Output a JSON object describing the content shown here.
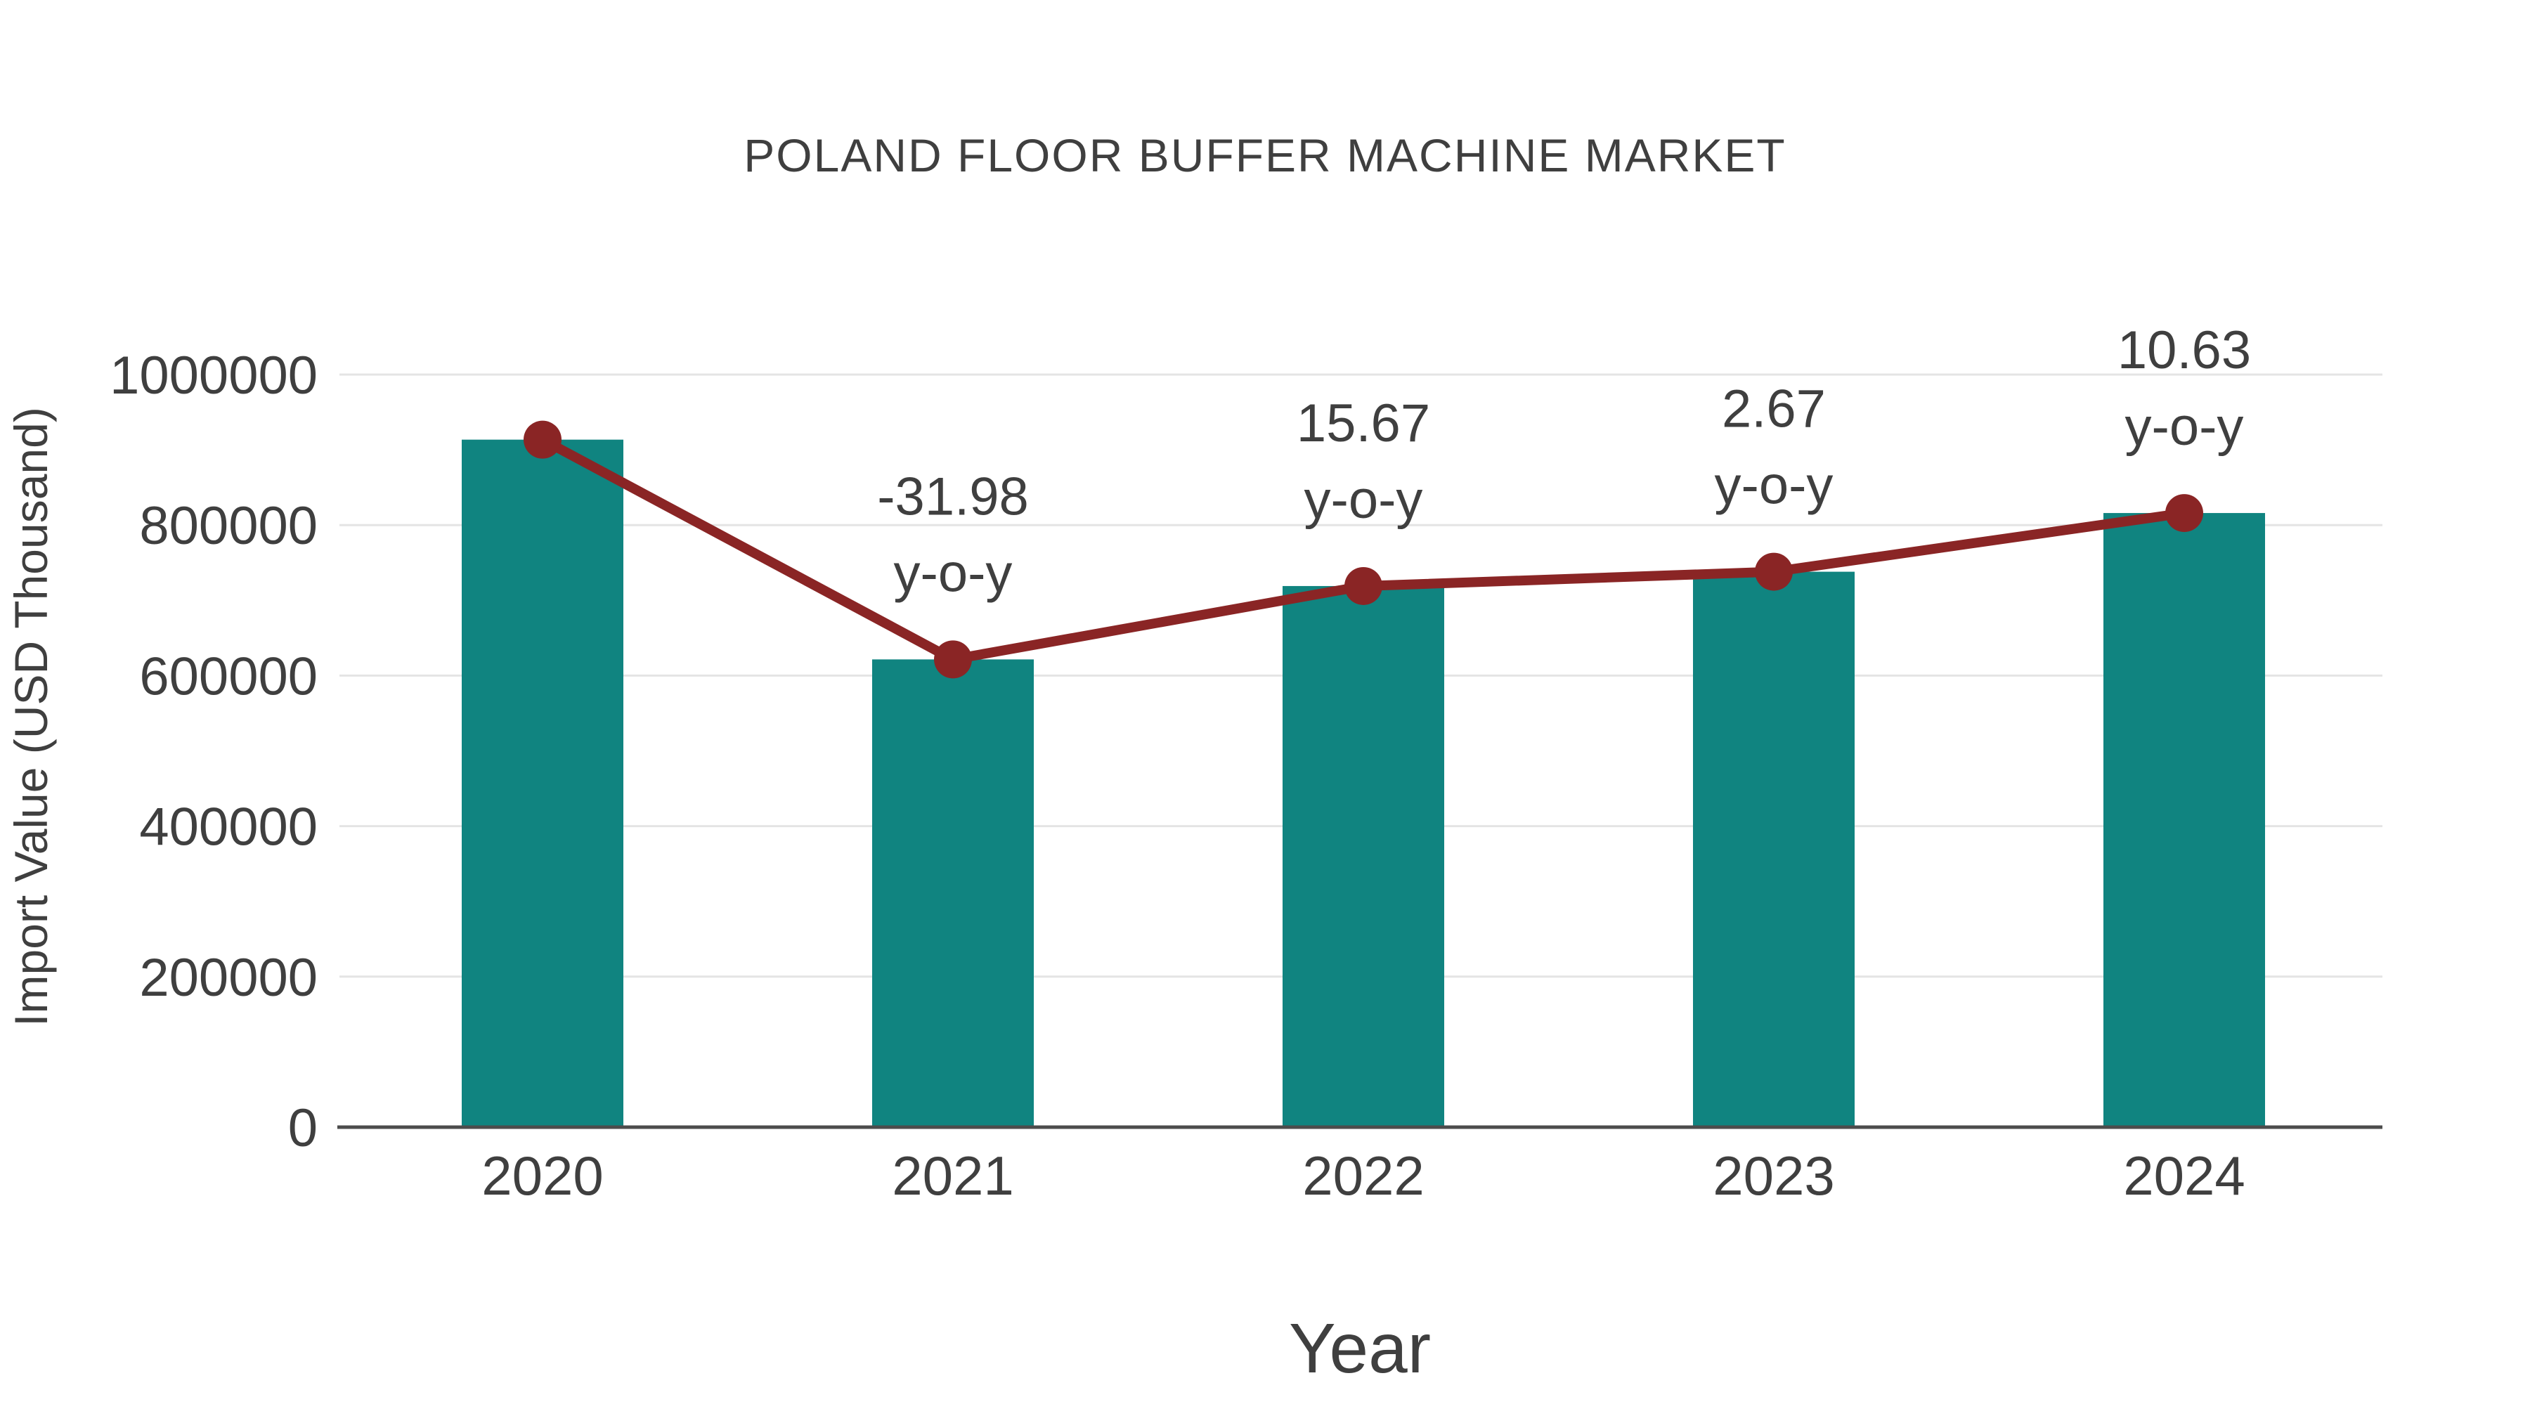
{
  "figure": {
    "title": "POLAND FLOOR BUFFER MACHINE MARKET"
  },
  "chart_data": {
    "type": "bar",
    "subtype": "bar-with-line-overlay",
    "title": "POLAND FLOOR BUFFER MACHINE MARKET",
    "xlabel": "Year",
    "ylabel": "Import Value (USD Thousand)",
    "categories": [
      "2020",
      "2021",
      "2022",
      "2023",
      "2024"
    ],
    "series": [
      {
        "name": "Import Value (USD Thousand)",
        "type": "bar",
        "color": "#108480",
        "values": [
          913500,
          621500,
          719000,
          738000,
          816000
        ]
      },
      {
        "name": "y-o-y (%)",
        "type": "line",
        "color": "#8a2525",
        "values": [
          null,
          -31.98,
          15.67,
          2.67,
          10.63
        ]
      }
    ],
    "annotations": [
      {
        "category": "2021",
        "line1": "-31.98",
        "line2": "y-o-y"
      },
      {
        "category": "2022",
        "line1": "15.67",
        "line2": "y-o-y"
      },
      {
        "category": "2023",
        "line1": "2.67",
        "line2": "y-o-y"
      },
      {
        "category": "2024",
        "line1": "10.63",
        "line2": "y-o-y"
      }
    ],
    "ylim": [
      0,
      1000000
    ],
    "yticks": [
      0,
      200000,
      400000,
      600000,
      800000,
      1000000
    ],
    "ytick_labels": [
      "0",
      "200000",
      "400000",
      "600000",
      "800000",
      "1000000"
    ],
    "grid": "horizontal",
    "legend": "none",
    "colors": {
      "bar": "#108480",
      "line": "#8a2525",
      "text": "#3f3f3f",
      "gridline": "#e4e4e4",
      "axis": "#4c4c4c",
      "background": "#ffffff"
    }
  }
}
